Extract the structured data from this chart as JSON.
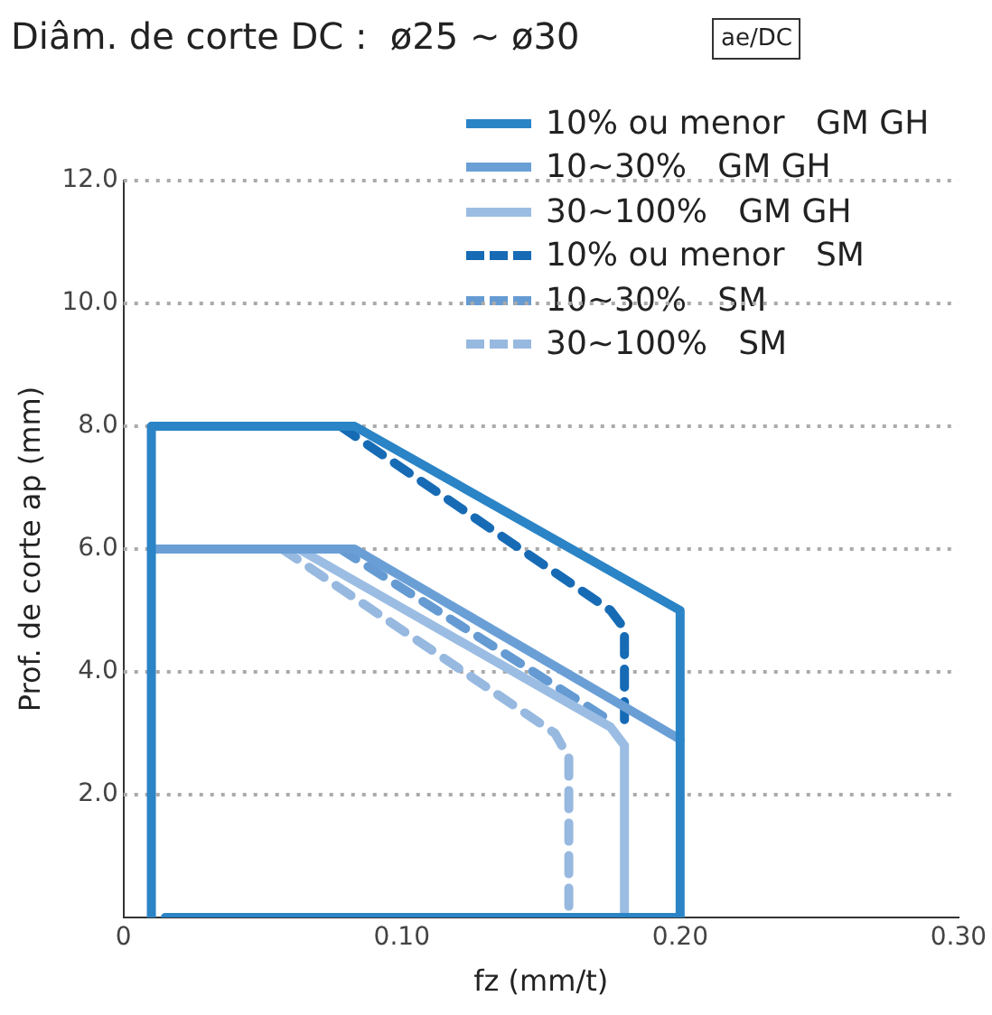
{
  "chart_data": {
    "type": "line",
    "title": "Diâm. de corte DC :  ø25 ~ ø30",
    "legend_title": "ae/DC",
    "xlabel": "fz (mm/t)",
    "ylabel": "Prof. de corte ap (mm)",
    "xlim": [
      0,
      0.3
    ],
    "xticks": [
      0,
      {
        "value": 0.1,
        "label": "0.10"
      },
      {
        "value": 0.2,
        "label": "0.20"
      },
      {
        "value": 0.3,
        "label": "0.30"
      }
    ],
    "ylim": [
      0,
      12
    ],
    "yticks": [
      {
        "value": 2,
        "label": "2.0"
      },
      {
        "value": 4,
        "label": "4.0"
      },
      {
        "value": 6,
        "label": "6.0"
      },
      {
        "value": 8,
        "label": "8.0"
      },
      {
        "value": 10,
        "label": "10.0"
      },
      {
        "value": 12,
        "label": "12.0"
      }
    ],
    "grid": "y",
    "legend": "top right",
    "marker": "none",
    "series": [
      {
        "name": "10% ou menor   GM GH",
        "color": "#2a84c6",
        "line_style": "solid",
        "x": [
          0.01,
          0.01,
          0.083,
          0.2,
          0.2,
          0.015
        ],
        "values": [
          0,
          8,
          8,
          5.0,
          0,
          0
        ]
      },
      {
        "name": "10~30%   GM GH",
        "color": "#6a9fd6",
        "line_style": "solid",
        "x": [
          0.01,
          0.083,
          0.2
        ],
        "values": [
          6,
          6,
          2.9
        ]
      },
      {
        "name": "30~100%   GM GH",
        "color": "#9bbde3",
        "line_style": "solid",
        "x": [
          0.063,
          0.175,
          0.18,
          0.18
        ],
        "values": [
          6,
          3.1,
          2.8,
          0
        ]
      },
      {
        "name": "10% ou menor   SM",
        "color": "#176bb5",
        "line_style": "dashed",
        "x": [
          0.078,
          0.175,
          0.18,
          0.18
        ],
        "values": [
          8,
          5.0,
          4.7,
          3.1
        ]
      },
      {
        "name": "10~30%   SM",
        "color": "#659bd2",
        "line_style": "dashed",
        "x": [
          0.078,
          0.175
        ],
        "values": [
          6,
          3.2
        ]
      },
      {
        "name": "30~100%   SM",
        "color": "#97b9e0",
        "line_style": "dashed",
        "x": [
          0.057,
          0.155,
          0.16,
          0.16
        ],
        "values": [
          6,
          3.0,
          2.6,
          0
        ]
      }
    ]
  }
}
